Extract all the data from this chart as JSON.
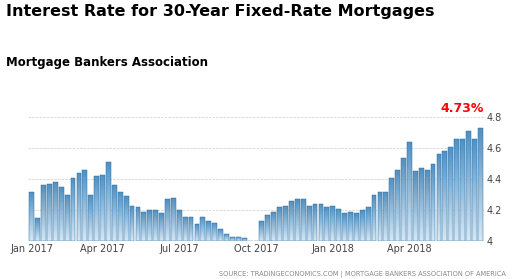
{
  "title": "Interest Rate for 30-Year Fixed-Rate Mortgages",
  "subtitle": "Mortgage Bankers Association",
  "source": "SOURCE: TRADINGECONOMICS.COM | MORTGAGE BANKERS ASSOCIATION OF AMERICA",
  "last_value_label": "4.73%",
  "last_value_color": "#ff0000",
  "ylim": [
    4.0,
    4.8
  ],
  "yticks": [
    4.0,
    4.2,
    4.4,
    4.6,
    4.8
  ],
  "bar_color_top": "#4f8fc0",
  "bar_color_bottom": "#d6e8f5",
  "bar_edge_color": "#2e6fa3",
  "background_color": "#ffffff",
  "grid_color": "#cccccc",
  "values": [
    4.32,
    4.15,
    4.36,
    4.37,
    4.38,
    4.35,
    4.3,
    4.41,
    4.44,
    4.46,
    4.3,
    4.42,
    4.43,
    4.51,
    4.36,
    4.32,
    4.29,
    4.23,
    4.22,
    4.19,
    4.2,
    4.2,
    4.18,
    4.27,
    4.28,
    4.2,
    4.16,
    4.16,
    4.11,
    4.16,
    4.13,
    4.12,
    4.08,
    4.05,
    4.03,
    4.03,
    4.02,
    4.0,
    3.96,
    4.13,
    4.17,
    4.19,
    4.22,
    4.23,
    4.26,
    4.27,
    4.27,
    4.23,
    4.24,
    4.24,
    4.22,
    4.23,
    4.21,
    4.18,
    4.19,
    4.18,
    4.2,
    4.22,
    4.3,
    4.32,
    4.32,
    4.41,
    4.46,
    4.54,
    4.64,
    4.45,
    4.47,
    4.46,
    4.5,
    4.56,
    4.58,
    4.61,
    4.66,
    4.66,
    4.71,
    4.66,
    4.73
  ],
  "x_tick_positions": [
    0,
    12,
    25,
    38,
    51,
    64
  ],
  "x_tick_labels": [
    "Jan 2017",
    "Apr 2017",
    "Jul 2017",
    "Oct 2017",
    "Jan 2018",
    "Apr 2018"
  ],
  "title_fontsize": 11.5,
  "subtitle_fontsize": 8.5,
  "tick_fontsize": 7,
  "source_fontsize": 4.8
}
